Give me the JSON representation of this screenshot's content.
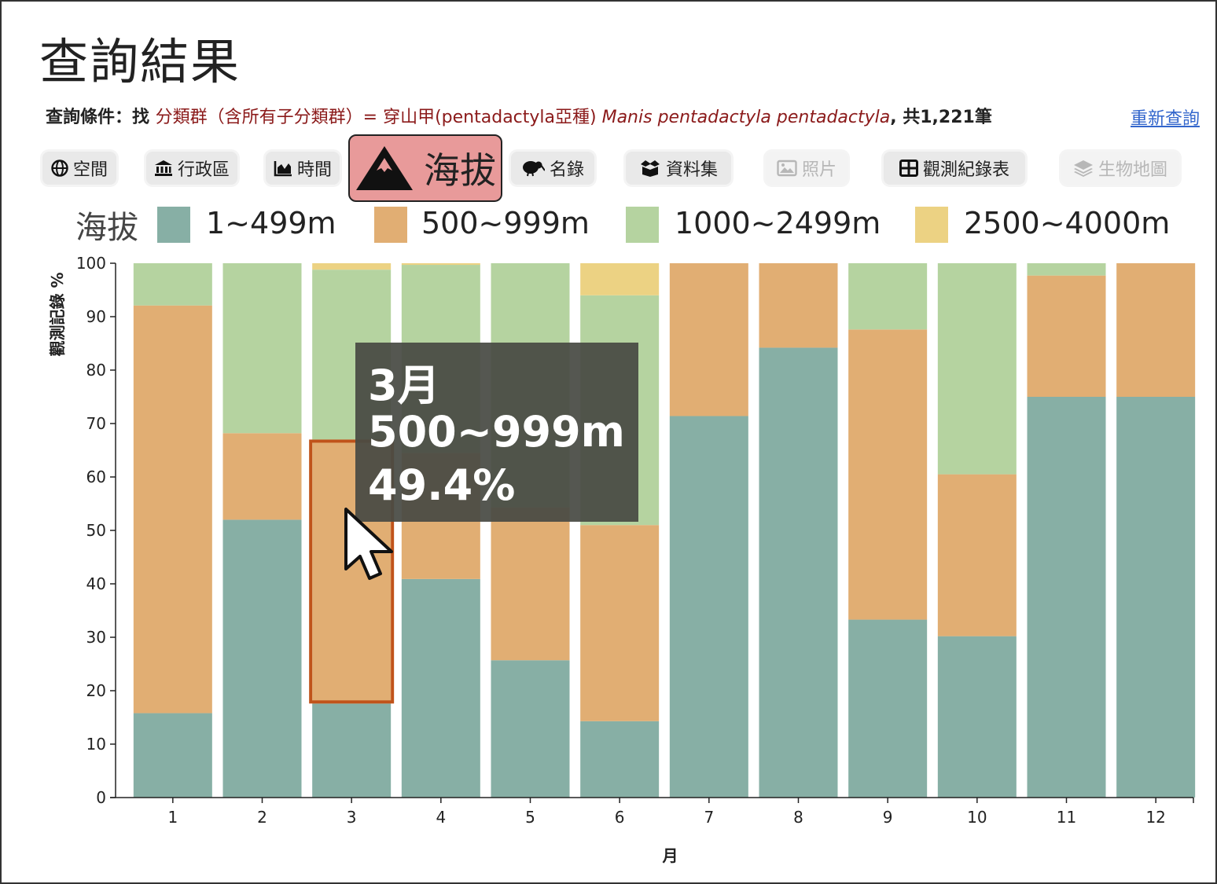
{
  "page": {
    "title": "查詢結果"
  },
  "query": {
    "prefix": "查詢條件：找 ",
    "taxon_text": "分類群（含所有子分類群）= 穿山甲(pentadactyla亞種) ",
    "scientific_name": "Manis pentadactyla pentadactyla",
    "count_text": ", 共1,221筆",
    "requery_label": "重新查詢"
  },
  "tabs": [
    {
      "label": "空間",
      "icon": "globe-icon",
      "state": "normal"
    },
    {
      "label": "行政區",
      "icon": "bank-icon",
      "state": "normal"
    },
    {
      "label": "時間",
      "icon": "area-chart-icon",
      "state": "normal"
    },
    {
      "label": "海拔",
      "icon": "mountain-icon",
      "state": "active"
    },
    {
      "label": "名錄",
      "icon": "kiwi-bird-icon",
      "state": "normal"
    },
    {
      "label": "資料集",
      "icon": "box-open-icon",
      "state": "normal"
    },
    {
      "label": "照片",
      "icon": "image-icon",
      "state": "disabled"
    },
    {
      "label": "觀測紀錄表",
      "icon": "table-icon",
      "state": "normal"
    },
    {
      "label": "生物地圖",
      "icon": "layers-icon",
      "state": "disabled"
    }
  ],
  "colors": {
    "s1": "#87afa5",
    "s2": "#e1ae73",
    "s3": "#b5d3a0",
    "s4": "#ecd283",
    "active_tab": "#e89a9a",
    "highlight": "#c0531a",
    "link": "#3366cc",
    "taxon_text": "#8b1a1a"
  },
  "chart_data": {
    "type": "bar",
    "stacked": true,
    "legend_title": "海拔",
    "xlabel": "月",
    "ylabel": "觀測記錄 %",
    "ylim": [
      0,
      100
    ],
    "yticks": [
      0,
      10,
      20,
      30,
      40,
      50,
      60,
      70,
      80,
      90,
      100
    ],
    "categories": [
      "1",
      "2",
      "3",
      "4",
      "5",
      "6",
      "7",
      "8",
      "9",
      "10",
      "11",
      "12"
    ],
    "series": [
      {
        "name": "1~499m",
        "values": [
          15.8,
          52.0,
          17.6,
          40.9,
          25.7,
          14.3,
          71.4,
          84.2,
          33.3,
          30.2,
          75.0,
          75.0
        ]
      },
      {
        "name": "500~999m",
        "values": [
          76.3,
          16.2,
          49.4,
          23.6,
          28.6,
          36.7,
          28.6,
          15.8,
          54.3,
          30.3,
          22.7,
          25.0
        ]
      },
      {
        "name": "1000~2499m",
        "values": [
          7.9,
          31.8,
          31.8,
          35.2,
          45.7,
          43.0,
          0,
          0,
          12.4,
          39.5,
          2.3,
          0
        ]
      },
      {
        "name": "2500~4000m",
        "values": [
          0,
          0,
          1.2,
          0.3,
          0,
          6.0,
          0,
          0,
          0,
          0,
          0,
          0
        ]
      }
    ],
    "highlighted": {
      "category": "3",
      "series": "500~999m"
    },
    "grid": false,
    "legend_position": "top"
  },
  "tooltip": {
    "month": "3月",
    "series": "500~999m",
    "value": "49.4%"
  }
}
